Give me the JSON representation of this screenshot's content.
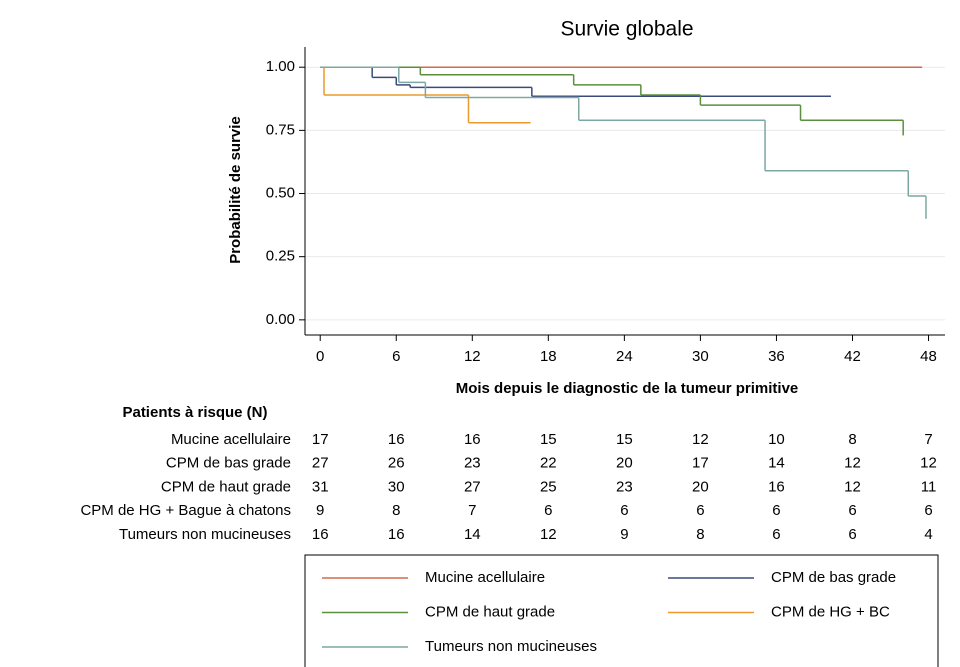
{
  "chart_data": {
    "type": "step",
    "title": "Survie globale",
    "x_label": "Mois depuis le diagnostic de la tumeur primitive",
    "y_label": "Probabilité de survie",
    "xlim": [
      -1.2,
      49.3
    ],
    "ylim": [
      -0.06,
      1.08
    ],
    "xticks": [
      0,
      6,
      12,
      18,
      24,
      30,
      36,
      42,
      48
    ],
    "yticks": [
      {
        "value": 0,
        "label": "0.00"
      },
      {
        "value": 0.25,
        "label": "0.25"
      },
      {
        "value": 0.5,
        "label": "0.50"
      },
      {
        "value": 0.75,
        "label": "0.75"
      },
      {
        "value": 1,
        "label": "1.00"
      }
    ],
    "grid": true,
    "series": [
      {
        "name": "Mucine acellulaire",
        "color": "#d26a4c",
        "x": [
          0,
          47.5
        ],
        "values": [
          1,
          1
        ]
      },
      {
        "name": "CPM de bas grade",
        "color": "#3b4a7c",
        "x": [
          0,
          4.1,
          6,
          7.1,
          16.7,
          40.3
        ],
        "values": [
          1,
          0.96,
          0.93,
          0.92,
          0.885,
          0.885
        ]
      },
      {
        "name": "CPM de haut grade",
        "color": "#5b8f3d",
        "x": [
          0,
          7.9,
          20,
          25.3,
          30,
          37.9,
          46
        ],
        "values": [
          1,
          0.97,
          0.93,
          0.89,
          0.85,
          0.79,
          0.73
        ]
      },
      {
        "name": "CPM de HG + BC",
        "color": "#ec9a2c",
        "x": [
          0,
          0.3,
          11.7,
          16.6
        ],
        "values": [
          1,
          0.89,
          0.78,
          0.78
        ]
      },
      {
        "name": "Tumeurs non mucineuses",
        "color": "#7ca8a2",
        "x": [
          0,
          6.2,
          8.3,
          20.4,
          35.1,
          46.4,
          47.8
        ],
        "values": [
          1,
          0.94,
          0.88,
          0.79,
          0.59,
          0.49,
          0.4
        ]
      }
    ],
    "risk_table": {
      "title": "Patients à risque (N)",
      "rows": [
        {
          "label": "Mucine acellulaire",
          "counts": [
            17,
            16,
            16,
            15,
            15,
            12,
            10,
            8,
            7
          ]
        },
        {
          "label": "CPM de bas grade",
          "counts": [
            27,
            26,
            23,
            22,
            20,
            17,
            14,
            12,
            12
          ]
        },
        {
          "label": "CPM de haut grade",
          "counts": [
            31,
            30,
            27,
            25,
            23,
            20,
            16,
            12,
            11
          ]
        },
        {
          "label": "CPM de HG + Bague à chatons",
          "counts": [
            9,
            8,
            7,
            6,
            6,
            6,
            6,
            6,
            6
          ]
        },
        {
          "label": "Tumeurs non mucineuses",
          "counts": [
            16,
            16,
            14,
            12,
            9,
            8,
            6,
            6,
            4
          ]
        }
      ]
    }
  }
}
